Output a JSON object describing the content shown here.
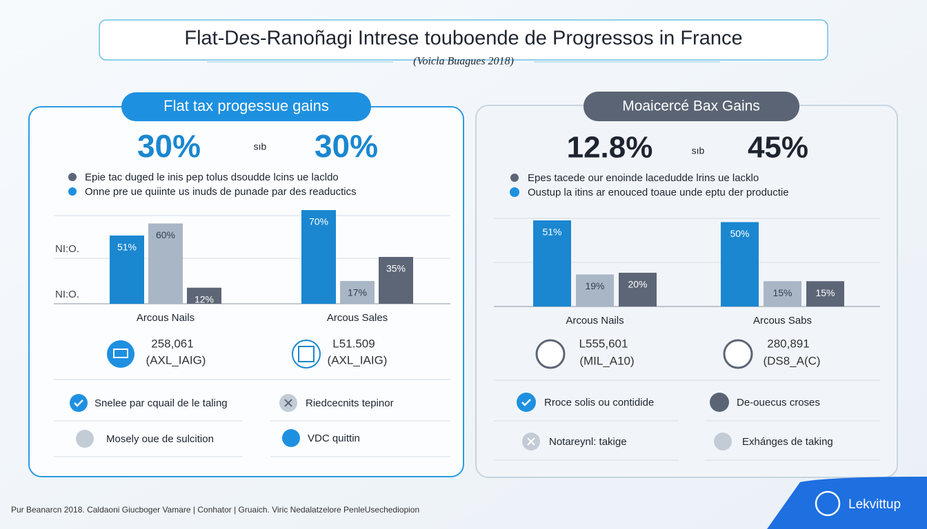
{
  "header": {
    "title": "Flat-Des-Ranoñagi Intrese touboende de Progressos in France",
    "subtitle": "(Voicla Buagues 2018)"
  },
  "panels": [
    {
      "title": "Flat tax progessue gains",
      "stat_left": "30%",
      "versus": "sıb",
      "stat_right": "30%",
      "bullets": [
        "Epie tac duged le inis pep tolus dsoudde lcins ue lacldo",
        "Onne pre ue quiinte us inuds de punade par des reaductics"
      ],
      "axis_notes": [
        "NI:O.",
        "NI:O."
      ],
      "figures": [
        {
          "number": "258,061",
          "unit": "(AXL_IAIG)"
        },
        {
          "number": "L51.509",
          "unit": "(AXL_IAIG)"
        }
      ],
      "items": [
        "Snelee par cquail de le taling",
        "Riedcecnits tepinor",
        "Mosely oue de sulcition",
        "VDC quittin"
      ]
    },
    {
      "title": "Moaicercé Bax Gains",
      "stat_left": "12.8%",
      "versus": "sıb",
      "stat_right": "45%",
      "bullets": [
        "Epes tacede our enoinde lacedudde lrins ue lacklo",
        "Oustup la itins ar enouced toaue unde eptu der productie"
      ],
      "figures": [
        {
          "number": "L555,601",
          "unit": "(MIL_A10)"
        },
        {
          "number": "280,891",
          "unit": "(DS8_A(C)"
        }
      ],
      "items": [
        "Rroce solis ou contidide",
        "De-ouecus croses",
        "Notareynl: takige",
        "Exhánges de taking"
      ]
    }
  ],
  "chart_data": [
    {
      "type": "bar",
      "categories": [
        "Arcous Nails",
        "Arcous Sales"
      ],
      "series": [
        {
          "color": "#1a87d0",
          "values": [
            51,
            70
          ],
          "value_labels": [
            "51%",
            "70%"
          ]
        },
        {
          "color": "#a9b6c6",
          "values": [
            60,
            17
          ],
          "value_labels": [
            "60%",
            "17%"
          ]
        },
        {
          "color": "#5d6676",
          "values": [
            12,
            35
          ],
          "value_labels": [
            "12%",
            "35%"
          ]
        }
      ]
    },
    {
      "type": "bar",
      "categories": [
        "Arcous Nails",
        "Arcous Sabs"
      ],
      "series": [
        {
          "color": "#1a87d0",
          "values": [
            51,
            50
          ],
          "value_labels": [
            "51%",
            "50%"
          ]
        },
        {
          "color": "#a9b6c6",
          "values": [
            19,
            15
          ],
          "value_labels": [
            "19%",
            "15%"
          ]
        },
        {
          "color": "#5d6676",
          "values": [
            20,
            15
          ],
          "value_labels": [
            "20%",
            "15%"
          ]
        }
      ]
    }
  ],
  "footer": {
    "note": "Pur Beanarcn 2018. Caldaoni Giucboger Vamare | Conhator | Gruaich. Viric Nedalatzelore PenleUsechediopion",
    "logo": "Lekvittup"
  }
}
